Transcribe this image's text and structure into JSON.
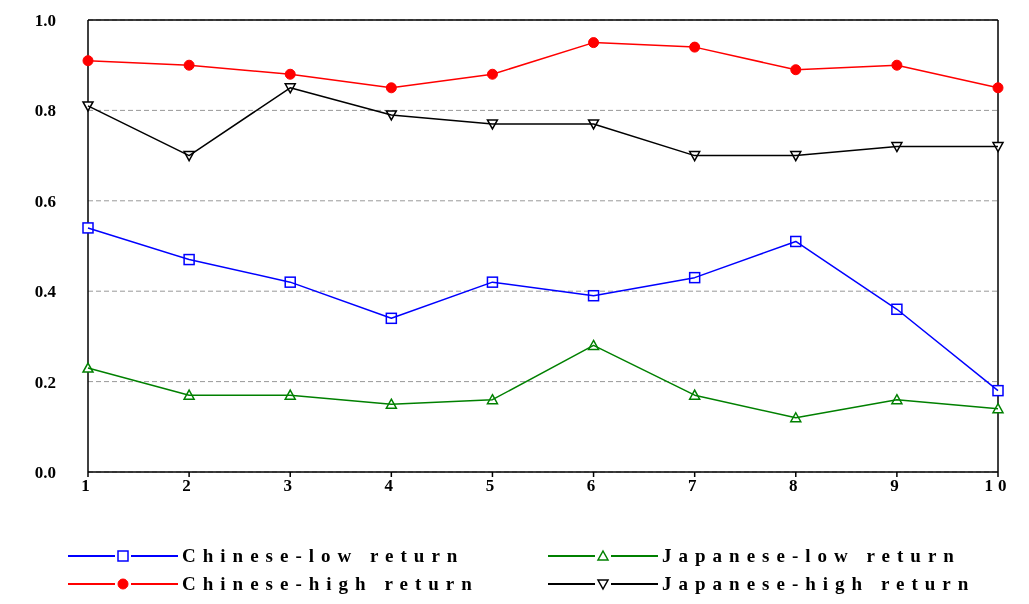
{
  "chart_data": {
    "type": "line",
    "x": [
      1,
      2,
      3,
      4,
      5,
      6,
      7,
      8,
      9,
      10
    ],
    "xlim": [
      1,
      10
    ],
    "xticks": [
      1,
      2,
      3,
      4,
      5,
      6,
      7,
      8,
      9,
      10
    ],
    "ylim": [
      0,
      1
    ],
    "yticks": [
      {
        "value": 0,
        "label": "0.0"
      },
      {
        "value": 0.2,
        "label": "0.2"
      },
      {
        "value": 0.4,
        "label": "0.4"
      },
      {
        "value": 0.6,
        "label": "0.6"
      },
      {
        "value": 0.8,
        "label": "0.8"
      },
      {
        "value": 1,
        "label": "1.0"
      }
    ],
    "grid": "y",
    "legend": "bottom",
    "line_style": "solid",
    "series": [
      {
        "name": "Chinese-low return",
        "color": "#0000ff",
        "marker": "square",
        "values": [
          0.54,
          0.47,
          0.42,
          0.34,
          0.42,
          0.39,
          0.43,
          0.51,
          0.36,
          0.18
        ]
      },
      {
        "name": "Japanese-low return",
        "color": "#008000",
        "marker": "triangle",
        "values": [
          0.23,
          0.17,
          0.17,
          0.15,
          0.16,
          0.28,
          0.17,
          0.12,
          0.16,
          0.14
        ]
      },
      {
        "name": "Chinese-high return",
        "color": "#ff0000",
        "marker": "circle",
        "values": [
          0.91,
          0.9,
          0.88,
          0.85,
          0.88,
          0.95,
          0.94,
          0.89,
          0.9,
          0.85
        ]
      },
      {
        "name": "Japanese-high return",
        "color": "#000000",
        "marker": "triangle-down",
        "values": [
          0.81,
          0.7,
          0.85,
          0.79,
          0.77,
          0.77,
          0.7,
          0.7,
          0.72,
          0.72
        ]
      }
    ]
  }
}
